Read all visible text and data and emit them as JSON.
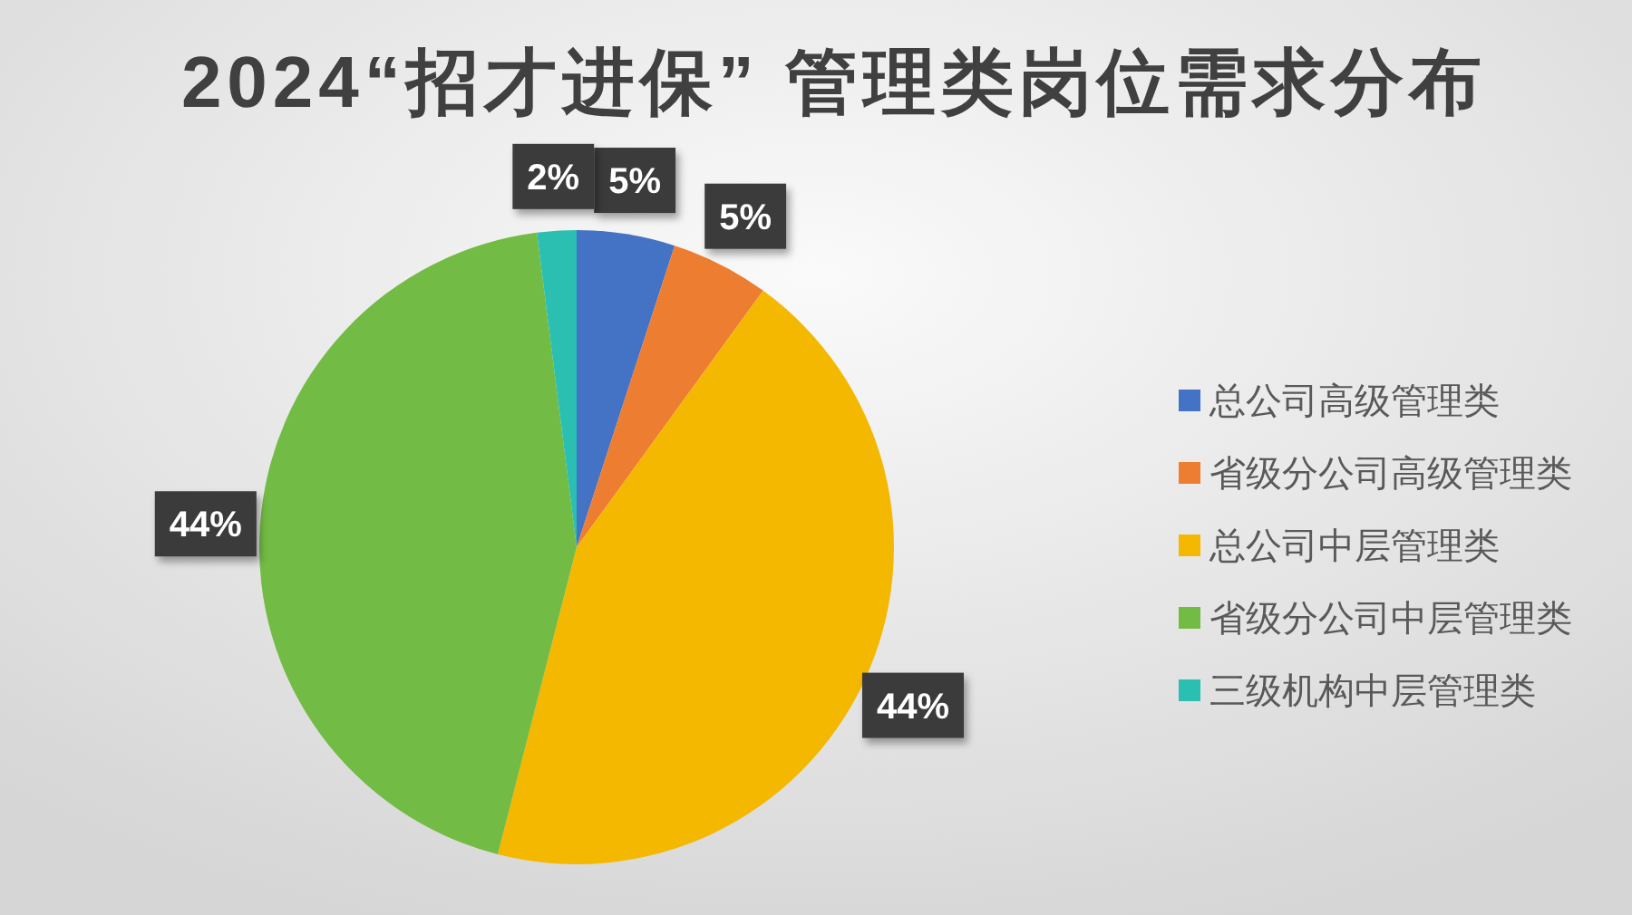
{
  "chart_data": {
    "type": "pie",
    "title": "2024“招才进保” 管理类岗位需求分布",
    "categories": [
      "总公司高级管理类",
      "省级分公司高级管理类",
      "总公司中层管理类",
      "省级分公司中层管理类",
      "三级机构中层管理类"
    ],
    "values": [
      5,
      5,
      44,
      44,
      2
    ],
    "colors": [
      "#4472c4",
      "#ed7d31",
      "#f5b800",
      "#72bb44",
      "#2bbfb2"
    ],
    "value_labels": [
      "5%",
      "5%",
      "44%",
      "44%",
      "2%"
    ],
    "legend": "right"
  }
}
